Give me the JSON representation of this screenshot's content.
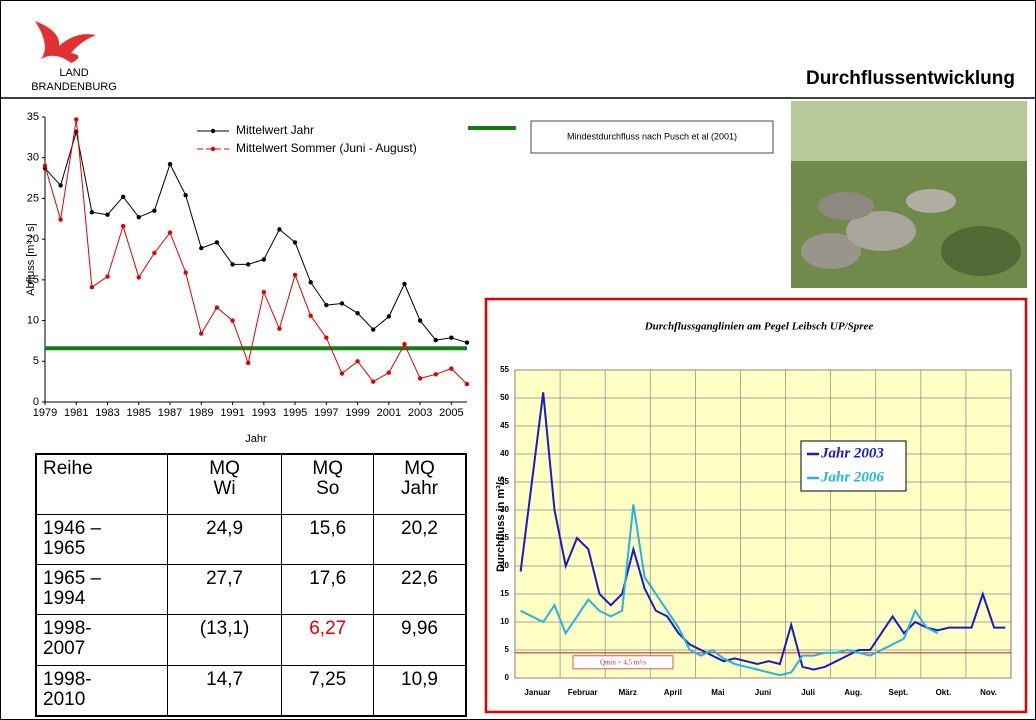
{
  "header": {
    "logo_line1": "LAND",
    "logo_line2": "BRANDENBURG",
    "title": "Durchflussentwicklung"
  },
  "chart_data": [
    {
      "type": "line",
      "x_label": "Jahr",
      "y_label": "Abfluss [m³ / s]",
      "x": [
        1979,
        1980,
        1981,
        1982,
        1983,
        1984,
        1985,
        1986,
        1987,
        1988,
        1989,
        1990,
        1991,
        1992,
        1993,
        1994,
        1995,
        1996,
        1997,
        1998,
        1999,
        2000,
        2001,
        2002,
        2003,
        2004,
        2005,
        2006
      ],
      "xlim": [
        1979,
        2006
      ],
      "xticks": [
        1979,
        1981,
        1983,
        1985,
        1987,
        1989,
        1991,
        1993,
        1995,
        1997,
        1999,
        2001,
        2003,
        2005
      ],
      "ylim": [
        0,
        35
      ],
      "yticks": [
        0,
        5,
        10,
        15,
        20,
        25,
        30,
        35
      ],
      "markers": true,
      "series": [
        {
          "name": "Mittelwert Jahr",
          "color": "#000000",
          "values": [
            28.7,
            26.6,
            33.2,
            23.3,
            23.0,
            25.2,
            22.7,
            23.5,
            29.2,
            25.4,
            18.9,
            19.6,
            16.9,
            16.9,
            17.5,
            21.2,
            19.6,
            14.7,
            11.9,
            12.1,
            10.9,
            8.9,
            10.5,
            14.5,
            10.0,
            7.6,
            7.9,
            7.3
          ]
        },
        {
          "name": "Mittelwert Sommer (Juni - August)",
          "color": "#e00000",
          "values": [
            29.0,
            22.4,
            34.7,
            14.1,
            15.4,
            21.6,
            15.3,
            18.3,
            20.8,
            15.9,
            8.4,
            11.6,
            10.0,
            4.8,
            13.5,
            9.0,
            15.6,
            10.6,
            7.9,
            3.5,
            5.0,
            2.5,
            3.6,
            7.1,
            2.9,
            3.4,
            4.1,
            2.2
          ]
        }
      ],
      "reference_line": {
        "name": "Mindestdurchfluss nach Pusch et al (2001)",
        "value": 6.6,
        "color": "#137d13"
      }
    },
    {
      "type": "line",
      "title": "Durchflussganglinien am Pegel Leibsch UP/Spree",
      "y_label": "Durchfluss in m³/s",
      "categories": [
        "Januar",
        null,
        null,
        null,
        "Februar",
        null,
        null,
        null,
        "März",
        null,
        null,
        null,
        "April",
        null,
        null,
        null,
        "Mai",
        null,
        null,
        null,
        "Juni",
        null,
        null,
        null,
        "Juli",
        null,
        null,
        null,
        "Aug.",
        null,
        null,
        null,
        "Sept.",
        null,
        null,
        null,
        "Okt.",
        null,
        null,
        null,
        "Nov.",
        null,
        null,
        null
      ],
      "ylim": [
        0,
        55
      ],
      "yticks": [
        0,
        5,
        10,
        15,
        20,
        25,
        30,
        35,
        40,
        45,
        50,
        55
      ],
      "grid": true,
      "series": [
        {
          "name": "Jahr 2003",
          "color": "#1a1ac8",
          "values": [
            19,
            35,
            51,
            30,
            20,
            25,
            23,
            15,
            13,
            15,
            23,
            16,
            12,
            11,
            8,
            6,
            5,
            4,
            3,
            3.5,
            3,
            2.5,
            3,
            2.5,
            9.5,
            2,
            1.5,
            2,
            3,
            4,
            5,
            5,
            8,
            11,
            8,
            10,
            9,
            8.5,
            9,
            9,
            9,
            15,
            9,
            9
          ]
        },
        {
          "name": "Jahr 2006",
          "color": "#22b5e0",
          "values": [
            12,
            11,
            10,
            13,
            8,
            11,
            14,
            12,
            11,
            12,
            31,
            18,
            15,
            12,
            9,
            5,
            4,
            5,
            3.5,
            2.5,
            2,
            1.5,
            1,
            0.5,
            1,
            4,
            4,
            4.5,
            4.5,
            5,
            4.5,
            4,
            5,
            6,
            7,
            12,
            9,
            8,
            null,
            null,
            null,
            null,
            null,
            null
          ]
        }
      ],
      "reference_line": {
        "name": "Qmin = 4,5 m³/s",
        "value": 4.5,
        "color": "#d03030"
      }
    }
  ],
  "table": {
    "header": [
      "Reihe",
      "MQ\nWi",
      "MQ\nSo",
      "MQ\nJahr"
    ],
    "rows": [
      [
        "1946 –\n1965",
        "24,9",
        "15,6",
        "20,2"
      ],
      [
        "1965 –\n1994",
        "27,7",
        "17,6",
        "22,6"
      ],
      [
        "1998-\n2007",
        "(13,1)",
        "6,27",
        "9,96"
      ],
      [
        "1998-\n2010",
        "14,7",
        "7,25",
        "10,9"
      ]
    ],
    "highlight": {
      "row": 2,
      "col": 2,
      "color": "#e00000"
    }
  }
}
